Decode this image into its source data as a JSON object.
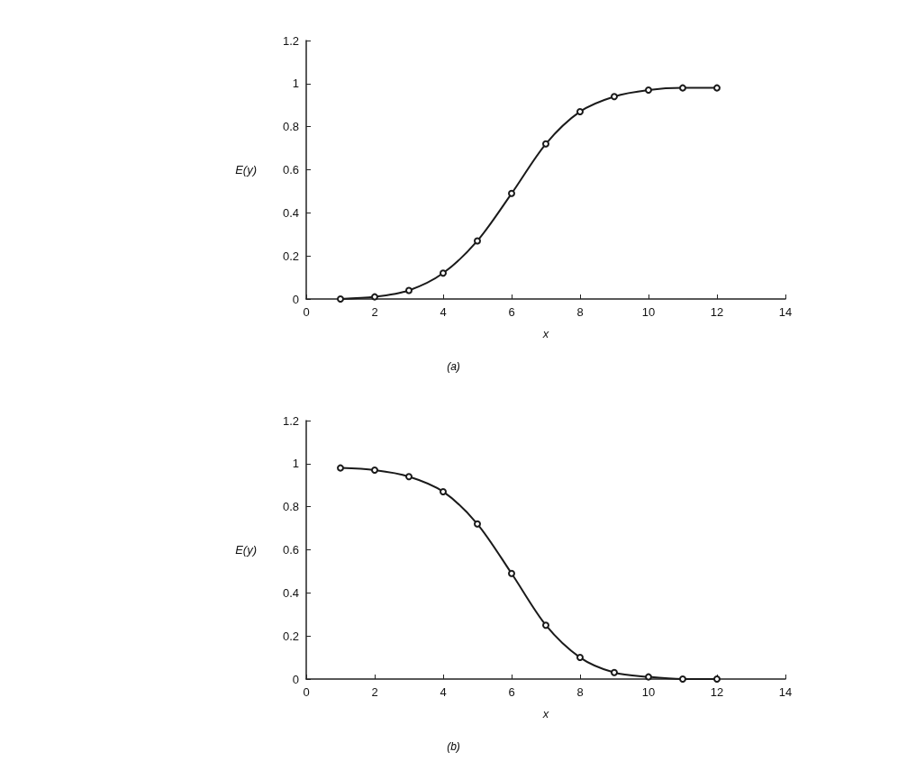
{
  "chart_data": [
    {
      "type": "line",
      "xlabel": "x",
      "ylabel": "E(y)",
      "annotations": [
        "(a)"
      ],
      "x": [
        1,
        2,
        3,
        4,
        5,
        6,
        7,
        8,
        9,
        10,
        11,
        12
      ],
      "series": [
        {
          "color": "#1a1a1a",
          "values": [
            0,
            0.01,
            0.04,
            0.12,
            0.27,
            0.49,
            0.72,
            0.87,
            0.94,
            0.97,
            0.98,
            0.98
          ]
        }
      ],
      "xlim": [
        0,
        14
      ],
      "xticks": [
        0,
        2,
        4,
        6,
        8,
        10,
        12,
        14
      ],
      "ylim": [
        0,
        1.2
      ],
      "yticks": [
        0,
        0.2,
        0.4,
        0.6,
        0.8,
        1,
        1.2
      ],
      "marker": "circle",
      "line_style": "solid"
    },
    {
      "type": "line",
      "xlabel": "x",
      "ylabel": "E(y)",
      "annotations": [
        "(b)"
      ],
      "x": [
        1,
        2,
        3,
        4,
        5,
        6,
        7,
        8,
        9,
        10,
        11,
        12
      ],
      "series": [
        {
          "color": "#1a1a1a",
          "values": [
            0.98,
            0.97,
            0.94,
            0.87,
            0.72,
            0.49,
            0.25,
            0.1,
            0.03,
            0.01,
            0,
            0
          ]
        }
      ],
      "xlim": [
        0,
        14
      ],
      "xticks": [
        0,
        2,
        4,
        6,
        8,
        10,
        12,
        14
      ],
      "ylim": [
        0,
        1.2
      ],
      "yticks": [
        0,
        0.2,
        0.4,
        0.6,
        0.8,
        1,
        1.2
      ],
      "marker": "circle",
      "line_style": "solid"
    }
  ]
}
